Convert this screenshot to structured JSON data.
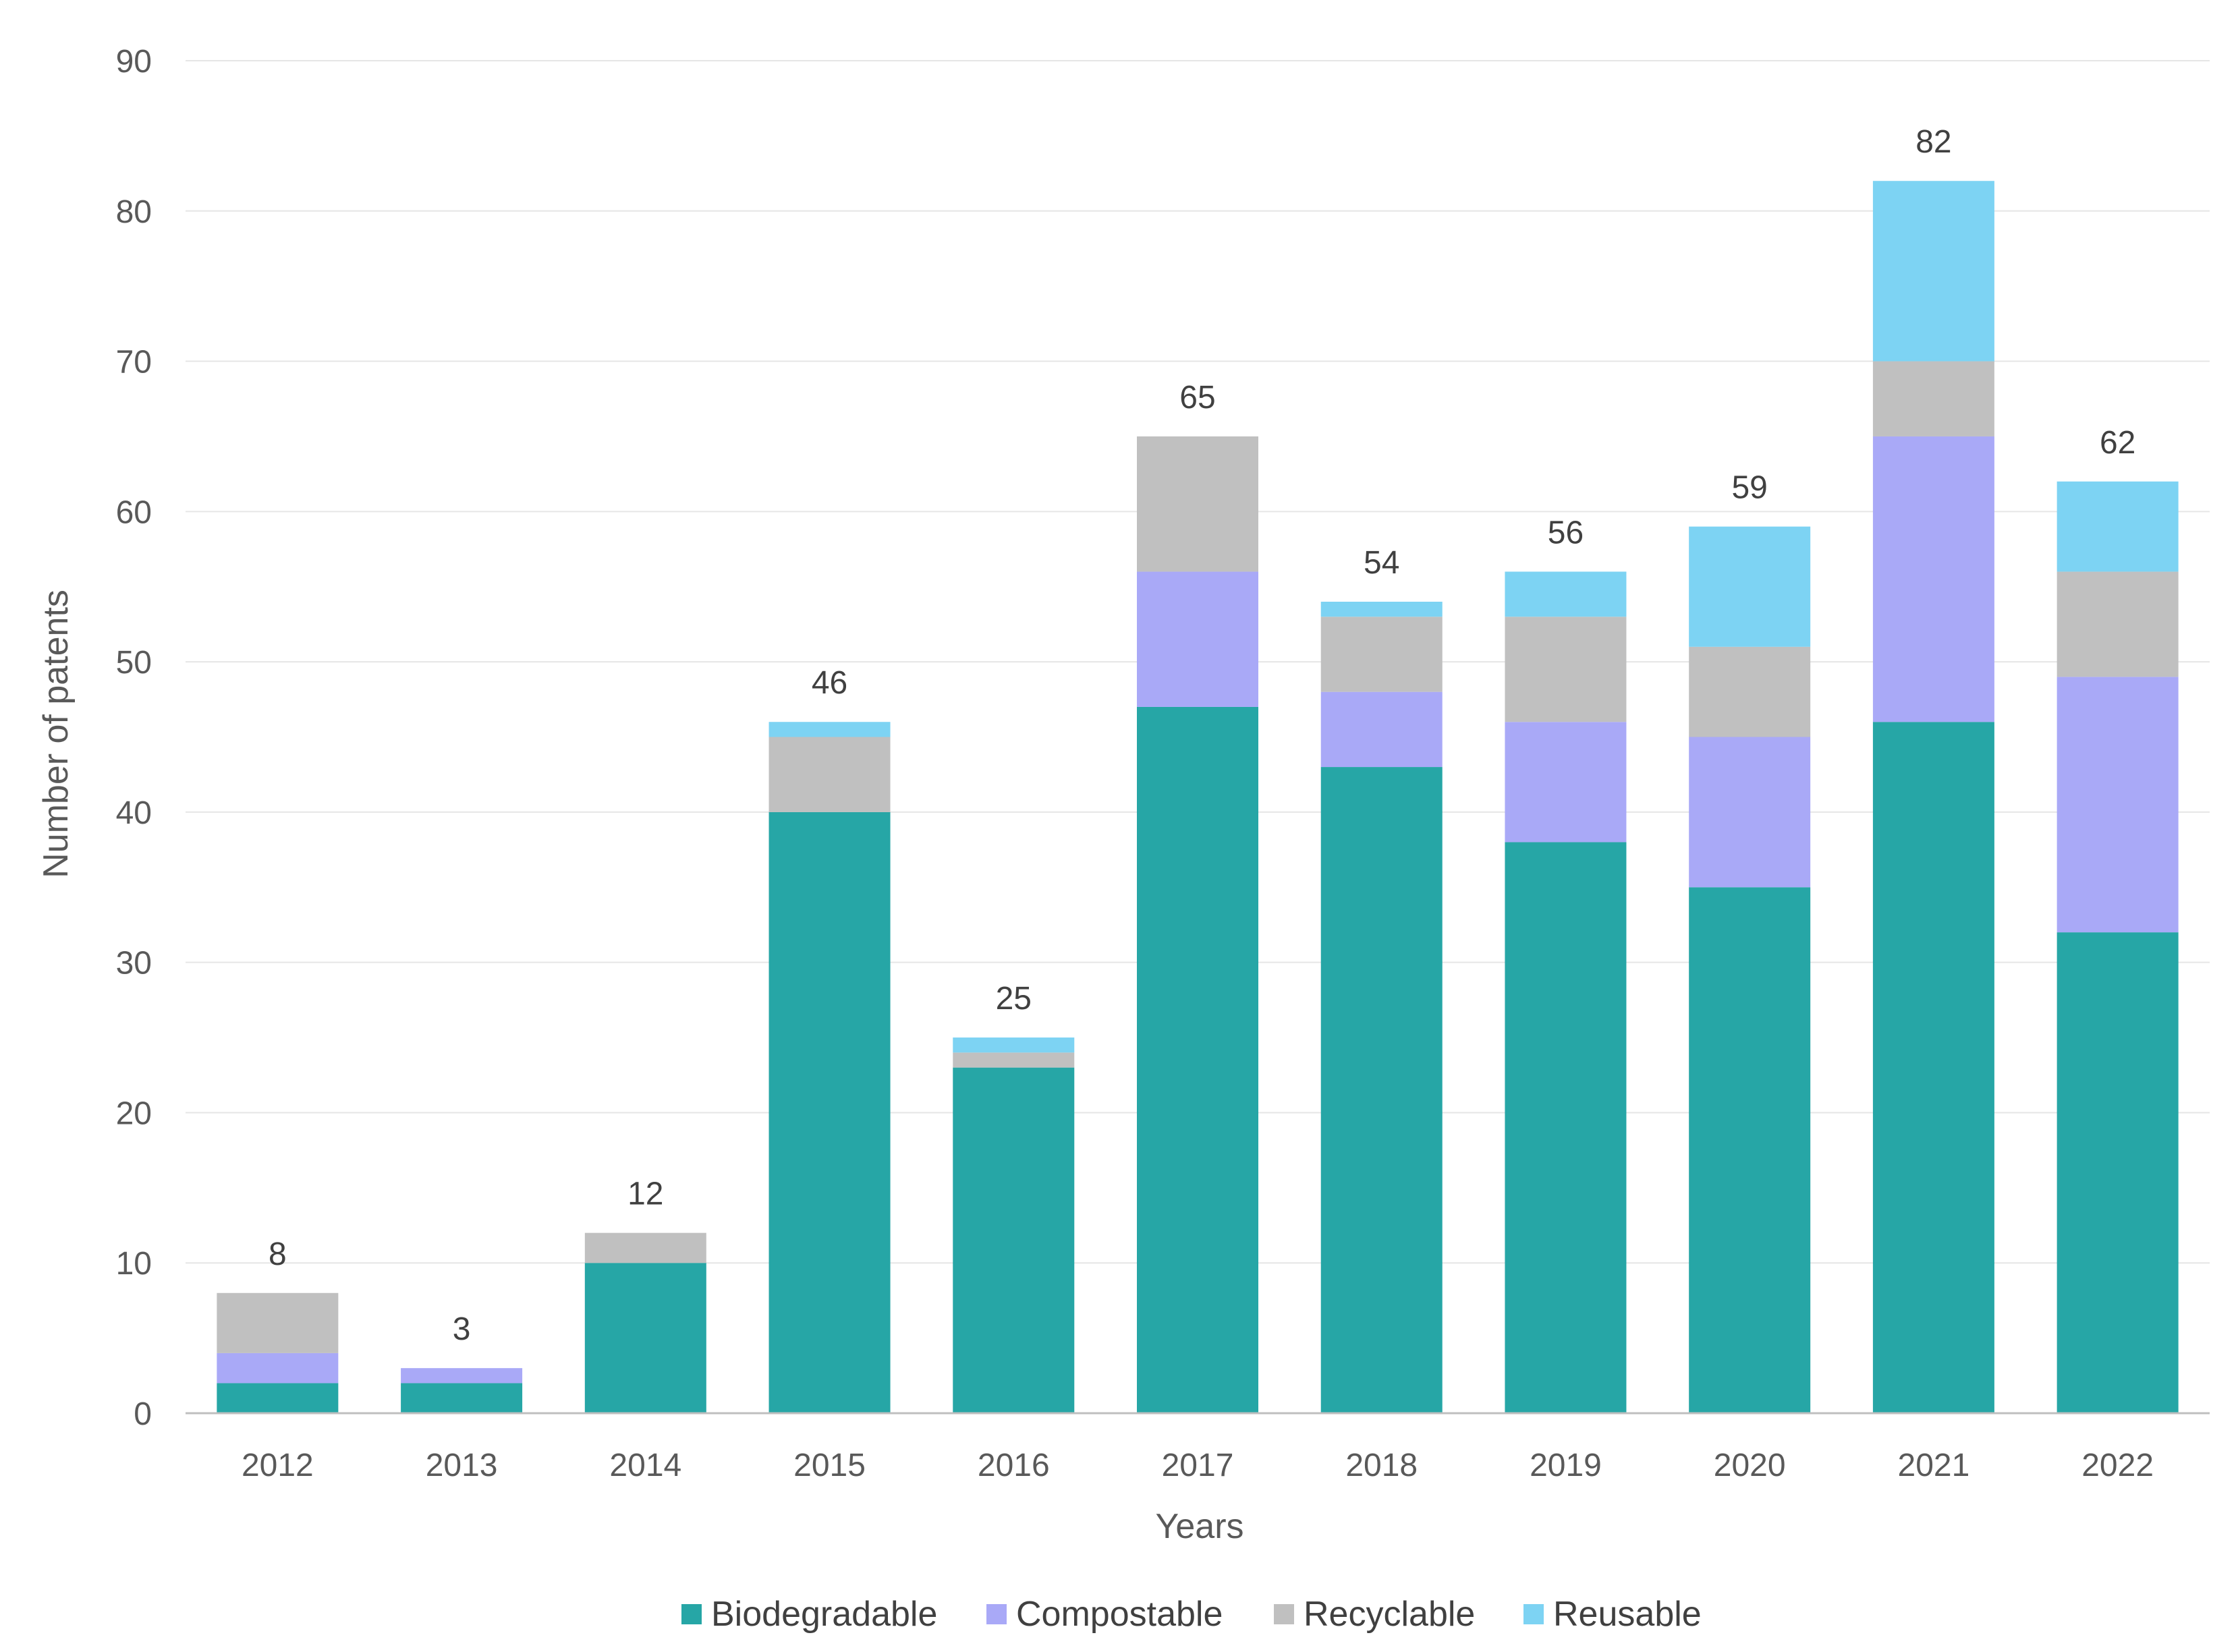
{
  "chart_data": {
    "type": "bar",
    "stacked": true,
    "title": "",
    "xlabel": "Years",
    "ylabel": "Number of patents",
    "ylim": [
      0,
      90
    ],
    "yticks": [
      0,
      10,
      20,
      30,
      40,
      50,
      60,
      70,
      80,
      90
    ],
    "grid": true,
    "legend_position": "bottom",
    "categories": [
      "2012",
      "2013",
      "2014",
      "2015",
      "2016",
      "2017",
      "2018",
      "2019",
      "2020",
      "2021",
      "2022"
    ],
    "series": [
      {
        "name": "Biodegradable",
        "color": "#26a6a6",
        "values": [
          2,
          2,
          10,
          40,
          23,
          47,
          43,
          38,
          35,
          46,
          32
        ]
      },
      {
        "name": "Compostable",
        "color": "#a9a9f7",
        "values": [
          2,
          1,
          0,
          0,
          0,
          9,
          5,
          8,
          10,
          19,
          17
        ]
      },
      {
        "name": "Recyclable",
        "color": "#c0c0c0",
        "values": [
          4,
          0,
          2,
          5,
          1,
          9,
          5,
          7,
          6,
          5,
          7
        ]
      },
      {
        "name": "Reusable",
        "color": "#7dd3f3",
        "values": [
          0,
          0,
          0,
          1,
          1,
          0,
          1,
          3,
          8,
          12,
          6
        ]
      }
    ],
    "totals": [
      8,
      3,
      12,
      46,
      25,
      65,
      54,
      56,
      59,
      82,
      62
    ]
  }
}
